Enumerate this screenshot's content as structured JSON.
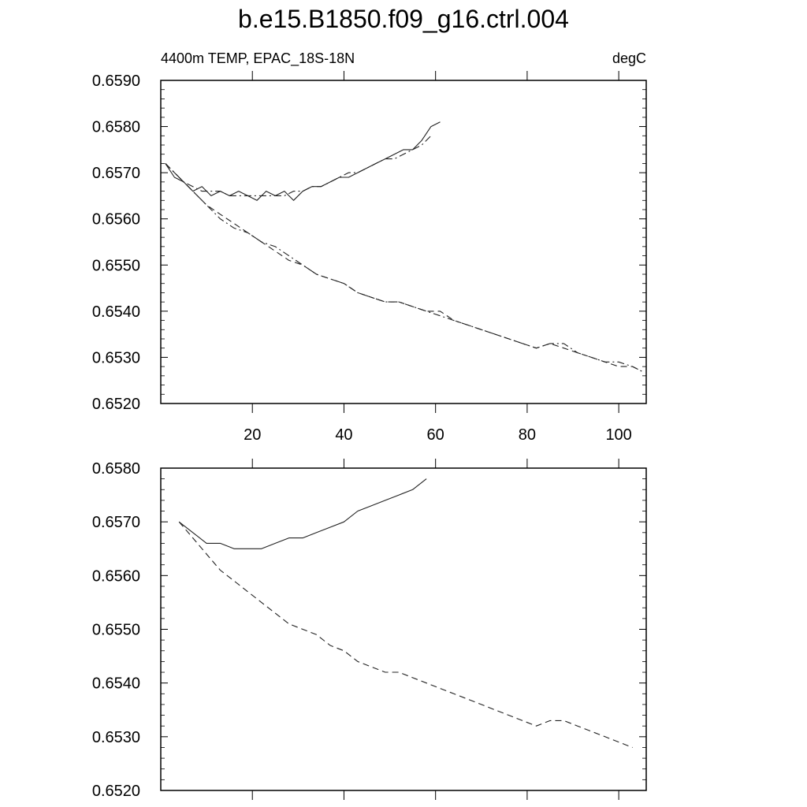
{
  "title": "b.e15.B1850.f09_g16.ctrl.004",
  "left_string": "4400m TEMP, EPAC_18S-18N",
  "right_string": "degC",
  "chart_data": [
    {
      "type": "line",
      "title": "b.e15.B1850.f09_g16.ctrl.004",
      "subtitle_left": "4400m TEMP, EPAC_18S-18N",
      "subtitle_right": "degC",
      "xlim": [
        0,
        106
      ],
      "ylim": [
        0.652,
        0.659
      ],
      "x_ticks": [
        20,
        40,
        60,
        80,
        100
      ],
      "x_tick_labels": [
        "20",
        "40",
        "60",
        "80",
        "100"
      ],
      "y_ticks": [
        0.652,
        0.653,
        0.654,
        0.655,
        0.656,
        0.657,
        0.658,
        0.659
      ],
      "y_tick_labels": [
        "0.6520",
        "0.6530",
        "0.6540",
        "0.6550",
        "0.6560",
        "0.6570",
        "0.6580",
        "0.6590"
      ],
      "grid": false,
      "series": [
        {
          "style": "solid",
          "x": [
            1,
            3,
            5,
            7,
            9,
            11,
            13,
            15,
            17,
            19,
            21,
            23,
            25,
            27,
            29,
            31,
            33,
            35,
            37,
            39,
            41,
            43,
            45,
            47,
            49,
            51,
            53,
            55,
            57,
            59,
            61
          ],
          "y": [
            0.6572,
            0.6569,
            0.6568,
            0.6566,
            0.6567,
            0.6565,
            0.6566,
            0.6565,
            0.6566,
            0.6565,
            0.6564,
            0.6566,
            0.6565,
            0.6566,
            0.6564,
            0.6566,
            0.6567,
            0.6567,
            0.6568,
            0.6569,
            0.6569,
            0.657,
            0.6571,
            0.6572,
            0.6573,
            0.6574,
            0.6575,
            0.6575,
            0.6577,
            0.658,
            0.6581
          ]
        },
        {
          "style": "dash-dot",
          "x": [
            1,
            3,
            5,
            7,
            9,
            11,
            13,
            15,
            17,
            19,
            21,
            23,
            25,
            27,
            29,
            31,
            33,
            35,
            37,
            39,
            41,
            43,
            45,
            47,
            49,
            51,
            53,
            55,
            57,
            59
          ],
          "y": [
            0.6572,
            0.657,
            0.6568,
            0.6567,
            0.6566,
            0.6566,
            0.6566,
            0.6565,
            0.6565,
            0.6565,
            0.6565,
            0.6565,
            0.6565,
            0.6565,
            0.6566,
            0.6566,
            0.6567,
            0.6567,
            0.6568,
            0.6569,
            0.657,
            0.657,
            0.6571,
            0.6572,
            0.6573,
            0.6573,
            0.6574,
            0.6575,
            0.6576,
            0.6578
          ]
        },
        {
          "style": "dashed",
          "x": [
            1,
            4,
            7,
            10,
            13,
            16,
            19,
            22,
            25,
            28,
            31,
            34,
            37,
            40,
            43,
            46,
            49,
            52,
            55,
            58,
            61,
            64,
            67,
            70,
            73,
            76,
            79,
            82,
            85,
            88,
            91,
            94,
            97,
            100,
            103,
            105
          ],
          "y": [
            0.6572,
            0.6569,
            0.6566,
            0.6563,
            0.6561,
            0.6559,
            0.6557,
            0.6555,
            0.6553,
            0.6551,
            0.655,
            0.6548,
            0.6547,
            0.6546,
            0.6544,
            0.6543,
            0.6542,
            0.6542,
            0.6541,
            0.654,
            0.654,
            0.6538,
            0.6537,
            0.6536,
            0.6535,
            0.6534,
            0.6533,
            0.6532,
            0.6533,
            0.6532,
            0.6531,
            0.653,
            0.6529,
            0.6528,
            0.6528,
            0.6527
          ]
        },
        {
          "style": "dash-dot",
          "x": [
            1,
            4,
            7,
            10,
            13,
            16,
            19,
            22,
            25,
            28,
            31,
            34,
            37,
            40,
            43,
            46,
            49,
            52,
            55,
            58,
            61,
            64,
            67,
            70,
            73,
            76,
            79,
            82,
            85,
            88,
            91,
            94,
            97,
            100,
            103,
            105
          ],
          "y": [
            0.6572,
            0.6569,
            0.6566,
            0.6563,
            0.656,
            0.6558,
            0.6557,
            0.6555,
            0.6554,
            0.6552,
            0.655,
            0.6548,
            0.6547,
            0.6546,
            0.6544,
            0.6543,
            0.6542,
            0.6542,
            0.6541,
            0.654,
            0.6539,
            0.6538,
            0.6537,
            0.6536,
            0.6535,
            0.6534,
            0.6533,
            0.6532,
            0.6533,
            0.6533,
            0.6531,
            0.653,
            0.6529,
            0.6529,
            0.6528,
            0.6527
          ]
        }
      ]
    },
    {
      "type": "line",
      "xlim": [
        0,
        106
      ],
      "ylim": [
        0.652,
        0.658
      ],
      "x_ticks": [
        20,
        40,
        60,
        80,
        100
      ],
      "x_tick_labels": [],
      "y_ticks": [
        0.652,
        0.653,
        0.654,
        0.655,
        0.656,
        0.657,
        0.658
      ],
      "y_tick_labels": [
        "0.6520",
        "0.6530",
        "0.6540",
        "0.6550",
        "0.6560",
        "0.6570",
        "0.6580"
      ],
      "grid": false,
      "series": [
        {
          "style": "solid",
          "x": [
            4,
            7,
            10,
            13,
            16,
            19,
            22,
            25,
            28,
            31,
            34,
            37,
            40,
            43,
            46,
            49,
            52,
            55,
            58
          ],
          "y": [
            0.657,
            0.6568,
            0.6566,
            0.6566,
            0.6565,
            0.6565,
            0.6565,
            0.6566,
            0.6567,
            0.6567,
            0.6568,
            0.6569,
            0.657,
            0.6572,
            0.6573,
            0.6574,
            0.6575,
            0.6576,
            0.6578
          ]
        },
        {
          "style": "dashed",
          "x": [
            4,
            7,
            10,
            13,
            16,
            19,
            22,
            25,
            28,
            31,
            34,
            37,
            40,
            43,
            46,
            49,
            52,
            55,
            58,
            61,
            64,
            67,
            70,
            73,
            76,
            79,
            82,
            85,
            88,
            91,
            94,
            97,
            100,
            103
          ],
          "y": [
            0.657,
            0.6567,
            0.6564,
            0.6561,
            0.6559,
            0.6557,
            0.6555,
            0.6553,
            0.6551,
            0.655,
            0.6549,
            0.6547,
            0.6546,
            0.6544,
            0.6543,
            0.6542,
            0.6542,
            0.6541,
            0.654,
            0.6539,
            0.6538,
            0.6537,
            0.6536,
            0.6535,
            0.6534,
            0.6533,
            0.6532,
            0.6533,
            0.6533,
            0.6532,
            0.6531,
            0.653,
            0.6529,
            0.6528
          ]
        }
      ]
    }
  ]
}
